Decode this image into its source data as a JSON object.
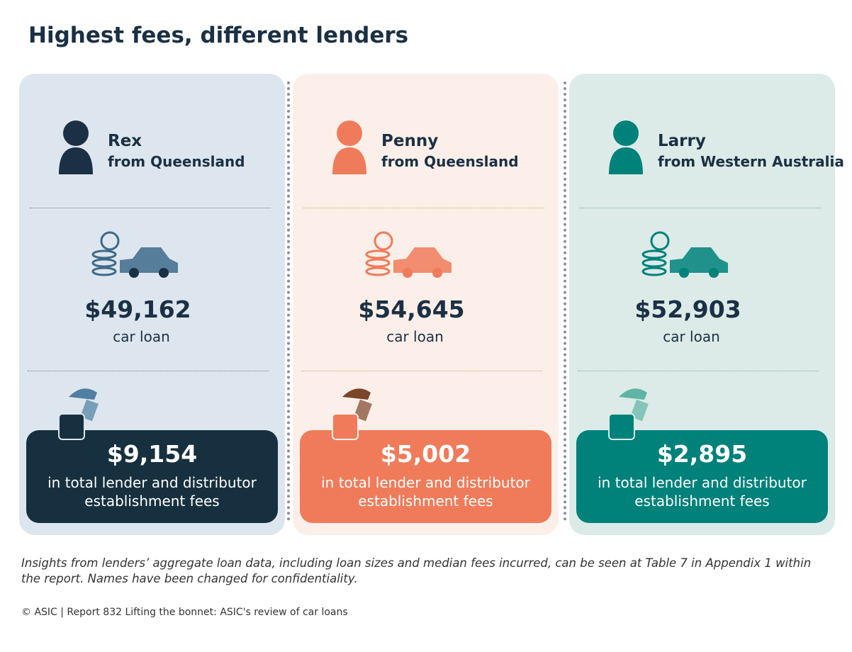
{
  "header": {
    "title": "Highest fees, different lenders"
  },
  "cards": [
    {
      "name": "Rex",
      "location": "from Queensland",
      "loan": "$49,162",
      "loan_label": "car loan",
      "fees": "$9,154",
      "fees_label_1": "in total lender and distributor",
      "fees_label_2": "establishment fees"
    },
    {
      "name": "Penny",
      "location": "from Queensland",
      "loan": "$54,645",
      "loan_label": "car loan",
      "fees": "$5,002",
      "fees_label_1": "in total lender and distributor",
      "fees_label_2": "establishment fees"
    },
    {
      "name": "Larry",
      "location": "from Western Australia",
      "loan": "$52,903",
      "loan_label": "car loan",
      "fees": "$2,895",
      "fees_label_1": "in total lender and distributor",
      "fees_label_2": "establishment fees"
    }
  ],
  "footnote": "Insights from lenders’ aggregate loan data, including loan sizes and median fees incurred, can be seen at Table 7 in Appendix 1 within the report. Names have been changed for confidentiality.",
  "copyright": "© ASIC | Report 832 Lifting the bonnet: ASIC's review of car loans"
}
